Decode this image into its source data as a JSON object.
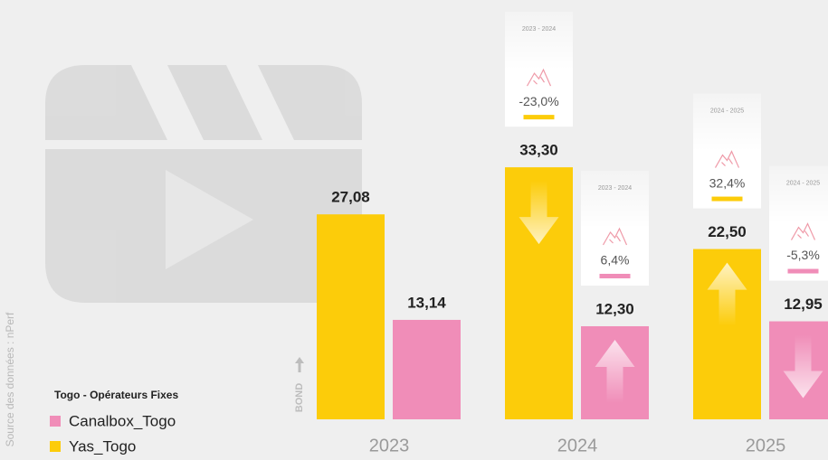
{
  "chart_data": {
    "type": "bar",
    "legend_title": "Togo - Opérateurs Fixes",
    "source": "Source des données : nPerf",
    "axis_label": "BOND",
    "categories": [
      "2023",
      "2024",
      "2025"
    ],
    "series": [
      {
        "name": "Yas_Togo",
        "color": "#fccc0a",
        "values": [
          27.08,
          33.3,
          22.5
        ],
        "value_labels": [
          "27,08",
          "33,30",
          "22,50"
        ],
        "changes": [
          null,
          {
            "period": "2023 - 2024",
            "value": -23.0,
            "label": "-23,0%"
          },
          {
            "period": "2024 - 2025",
            "value": 32.4,
            "label": "32,4%"
          }
        ]
      },
      {
        "name": "Canalbox_Togo",
        "color": "#f08db8",
        "values": [
          13.14,
          12.3,
          12.95
        ],
        "value_labels": [
          "13,14",
          "12,30",
          "12,95"
        ],
        "changes": [
          null,
          {
            "period": "2023 - 2024",
            "value": 6.4,
            "label": "6,4%"
          },
          {
            "period": "2024 - 2025",
            "value": -5.3,
            "label": "-5,3%"
          }
        ]
      }
    ],
    "legend_order": [
      1,
      0
    ],
    "ylim": [
      0,
      40
    ]
  }
}
